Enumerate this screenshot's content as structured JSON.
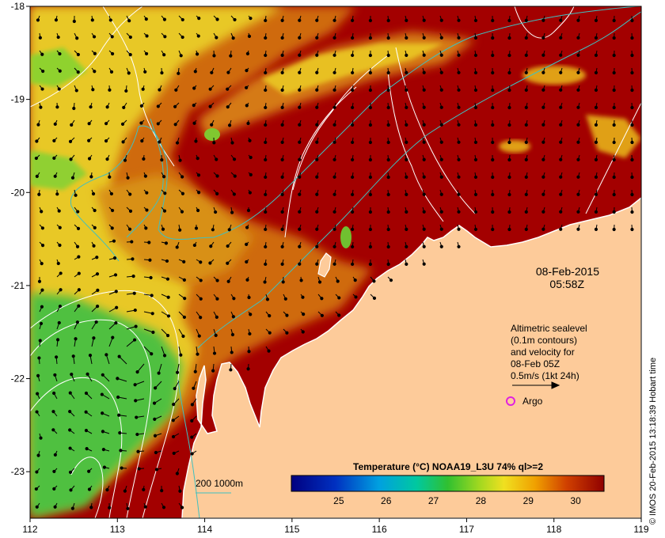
{
  "map": {
    "lon_ticks": [
      "112",
      "113",
      "114",
      "115",
      "116",
      "117",
      "118",
      "119"
    ],
    "lat_ticks": [
      "-18",
      "-19",
      "-20",
      "-21",
      "-22",
      "-23"
    ],
    "lon_range": [
      112,
      119
    ],
    "lat_range": [
      -18,
      -23.5
    ]
  },
  "date_label": {
    "date": "08-Feb-2015",
    "time": "05:58Z"
  },
  "altimetry_legend": {
    "lines": [
      "Altimetric sealevel",
      "(0.1m contours)",
      "and velocity for",
      "08-Feb 05Z",
      "0.5m/s (1kt 24h)"
    ]
  },
  "argo_legend": {
    "label": "Argo",
    "color": "#e020e0"
  },
  "bathymetry_legend": {
    "label": "200  1000m",
    "color": "#40c0c0"
  },
  "colorbar": {
    "title": "Temperature (°C) NOAA19_L3U 74% ql>=2",
    "tick_labels": [
      "25",
      "26",
      "27",
      "28",
      "29",
      "30"
    ],
    "range": [
      24,
      30.6
    ]
  },
  "credit": "© IMOS 20-Feb-2015 13:18:39 Hobart time",
  "colors": {
    "land": "#fdcb9a",
    "warm": "#a30000",
    "orange": "#d87a10",
    "yellow": "#e6d020",
    "green": "#40c040",
    "contour": "#ffffff",
    "isobath": "#40c0c0"
  }
}
